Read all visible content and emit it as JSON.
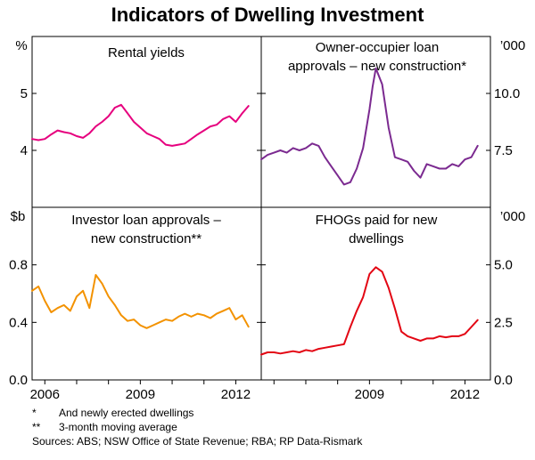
{
  "colors": {
    "rental_yields": "#e6007e",
    "owner_occupier": "#7b2a90",
    "investor": "#f39200",
    "fhogs": "#e30613",
    "frame": "#000000",
    "grid": "#000000"
  },
  "chart_data": {
    "type": "line",
    "title": "Indicators of Dwelling Investment",
    "x_tick_labels": [
      "2006",
      "2009",
      "2012"
    ],
    "x_range": [
      2005.6,
      2012.8
    ],
    "rows": [
      {
        "left_unit": "%",
        "right_unit": "’000",
        "left_ticks": [
          {
            "value": 4,
            "label": "4"
          },
          {
            "value": 5,
            "label": "5"
          }
        ],
        "right_ticks": [
          {
            "value": 7.5,
            "label": "7.5"
          },
          {
            "value": 10.0,
            "label": "10.0"
          }
        ],
        "left_ylim": [
          3.0,
          6.0
        ],
        "right_ylim": [
          5.0,
          12.5
        ]
      },
      {
        "left_unit": "$b",
        "right_unit": "’000",
        "left_ticks": [
          {
            "value": 0.0,
            "label": "0.0"
          },
          {
            "value": 0.4,
            "label": "0.4"
          },
          {
            "value": 0.8,
            "label": "0.8"
          }
        ],
        "right_ticks": [
          {
            "value": 0.0,
            "label": "0.0"
          },
          {
            "value": 2.5,
            "label": "2.5"
          },
          {
            "value": 5.0,
            "label": "5.0"
          }
        ],
        "left_ylim": [
          0.0,
          1.2
        ],
        "right_ylim": [
          0.0,
          7.5
        ]
      }
    ],
    "panels": [
      {
        "id": "rental-yields",
        "title": "Rental yields",
        "unit": "%",
        "color_key": "rental_yields",
        "x": [
          2005.6,
          2005.8,
          2006.0,
          2006.2,
          2006.4,
          2006.6,
          2006.8,
          2007.0,
          2007.2,
          2007.4,
          2007.6,
          2007.8,
          2008.0,
          2008.2,
          2008.4,
          2008.6,
          2008.8,
          2009.0,
          2009.2,
          2009.4,
          2009.6,
          2009.8,
          2010.0,
          2010.2,
          2010.4,
          2010.6,
          2010.8,
          2011.0,
          2011.2,
          2011.4,
          2011.6,
          2011.8,
          2012.0,
          2012.2,
          2012.4
        ],
        "values": [
          4.2,
          4.18,
          4.2,
          4.28,
          4.35,
          4.32,
          4.3,
          4.25,
          4.22,
          4.3,
          4.42,
          4.5,
          4.6,
          4.75,
          4.8,
          4.65,
          4.5,
          4.4,
          4.3,
          4.25,
          4.2,
          4.1,
          4.08,
          4.1,
          4.12,
          4.2,
          4.28,
          4.35,
          4.42,
          4.45,
          4.55,
          4.6,
          4.5,
          4.65,
          4.78
        ]
      },
      {
        "id": "owner-occupier",
        "title": "Owner-occupier loan approvals – new construction*",
        "title_line1": "Owner-occupier loan",
        "title_line2": "approvals – new construction*",
        "unit": "’000",
        "color_key": "owner_occupier",
        "x": [
          2005.6,
          2005.8,
          2006.0,
          2006.2,
          2006.4,
          2006.6,
          2006.8,
          2007.0,
          2007.2,
          2007.4,
          2007.6,
          2007.8,
          2008.0,
          2008.2,
          2008.4,
          2008.6,
          2008.8,
          2009.0,
          2009.1,
          2009.2,
          2009.4,
          2009.6,
          2009.8,
          2010.0,
          2010.2,
          2010.4,
          2010.6,
          2010.8,
          2011.0,
          2011.2,
          2011.4,
          2011.6,
          2011.8,
          2012.0,
          2012.2,
          2012.4
        ],
        "values": [
          7.1,
          7.3,
          7.4,
          7.5,
          7.4,
          7.6,
          7.5,
          7.6,
          7.8,
          7.7,
          7.2,
          6.8,
          6.4,
          6.0,
          6.1,
          6.7,
          7.6,
          9.3,
          10.3,
          11.1,
          10.4,
          8.5,
          7.2,
          7.1,
          7.0,
          6.6,
          6.3,
          6.9,
          6.8,
          6.7,
          6.7,
          6.9,
          6.8,
          7.1,
          7.2,
          7.7
        ]
      },
      {
        "id": "investor-loan",
        "title": "Investor loan approvals – new construction**",
        "title_line1": "Investor loan approvals –",
        "title_line2": "new construction**",
        "unit": "$b",
        "color_key": "investor",
        "x": [
          2005.6,
          2005.8,
          2006.0,
          2006.2,
          2006.4,
          2006.6,
          2006.8,
          2007.0,
          2007.2,
          2007.4,
          2007.6,
          2007.8,
          2008.0,
          2008.2,
          2008.4,
          2008.6,
          2008.8,
          2009.0,
          2009.2,
          2009.4,
          2009.6,
          2009.8,
          2010.0,
          2010.2,
          2010.4,
          2010.6,
          2010.8,
          2011.0,
          2011.2,
          2011.4,
          2011.6,
          2011.8,
          2012.0,
          2012.2,
          2012.4
        ],
        "values": [
          0.62,
          0.65,
          0.55,
          0.47,
          0.5,
          0.52,
          0.48,
          0.58,
          0.62,
          0.5,
          0.73,
          0.67,
          0.58,
          0.52,
          0.45,
          0.41,
          0.42,
          0.38,
          0.36,
          0.38,
          0.4,
          0.42,
          0.41,
          0.44,
          0.46,
          0.44,
          0.46,
          0.45,
          0.43,
          0.46,
          0.48,
          0.5,
          0.42,
          0.45,
          0.37
        ]
      },
      {
        "id": "fhogs",
        "title": "FHOGs paid for new dwellings",
        "title_line1": "FHOGs paid for new",
        "title_line2": "dwellings",
        "unit": "’000",
        "color_key": "fhogs",
        "x": [
          2005.6,
          2005.8,
          2006.0,
          2006.2,
          2006.4,
          2006.6,
          2006.8,
          2007.0,
          2007.2,
          2007.4,
          2007.6,
          2007.8,
          2008.0,
          2008.2,
          2008.4,
          2008.6,
          2008.8,
          2009.0,
          2009.2,
          2009.4,
          2009.6,
          2009.8,
          2010.0,
          2010.2,
          2010.4,
          2010.6,
          2010.8,
          2011.0,
          2011.2,
          2011.4,
          2011.6,
          2011.8,
          2012.0,
          2012.2,
          2012.4
        ],
        "values": [
          1.1,
          1.2,
          1.2,
          1.15,
          1.2,
          1.25,
          1.2,
          1.3,
          1.25,
          1.35,
          1.4,
          1.45,
          1.5,
          1.55,
          2.3,
          3.0,
          3.6,
          4.6,
          4.9,
          4.7,
          4.0,
          3.1,
          2.1,
          1.9,
          1.8,
          1.7,
          1.8,
          1.8,
          1.9,
          1.85,
          1.9,
          1.9,
          2.0,
          2.3,
          2.6
        ]
      }
    ],
    "notes": [
      {
        "marker": "*",
        "text": "And newly erected dwellings"
      },
      {
        "marker": "**",
        "text": "3-month moving average"
      }
    ],
    "sources": "Sources: ABS; NSW Office of State Revenue; RBA; RP Data-Rismark"
  }
}
